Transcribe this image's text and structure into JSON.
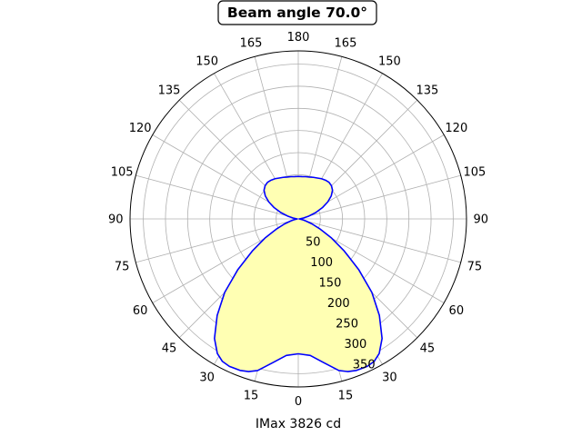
{
  "chart_data": {
    "type": "polar",
    "title": "Beam angle 70.0°",
    "xlabel": "IMax 3826 cd",
    "angle_tick_labels": [
      "0",
      "15",
      "30",
      "45",
      "60",
      "75",
      "90",
      "105",
      "120",
      "135",
      "150",
      "165",
      "180",
      "165",
      "150",
      "135",
      "120",
      "105",
      "90",
      "75",
      "60",
      "45",
      "30",
      "15"
    ],
    "radial_tick_labels": [
      "50",
      "100",
      "150",
      "200",
      "250",
      "300",
      "350"
    ],
    "rlim": [
      0,
      380
    ],
    "grid": true,
    "line_color": "#0000ff",
    "fill_color": "#ffffb3",
    "series": [
      {
        "curve": [
          {
            "angle": 0,
            "r": 305
          },
          {
            "angle": 5,
            "r": 310
          },
          {
            "angle": 10,
            "r": 330
          },
          {
            "angle": 15,
            "r": 355
          },
          {
            "angle": 18,
            "r": 363
          },
          {
            "angle": 21,
            "r": 367
          },
          {
            "angle": 25,
            "r": 368
          },
          {
            "angle": 28,
            "r": 365
          },
          {
            "angle": 31,
            "r": 355
          },
          {
            "angle": 35,
            "r": 330
          },
          {
            "angle": 40,
            "r": 285
          },
          {
            "angle": 45,
            "r": 235
          },
          {
            "angle": 50,
            "r": 178
          },
          {
            "angle": 55,
            "r": 127
          },
          {
            "angle": 60,
            "r": 87
          },
          {
            "angle": 65,
            "r": 55
          },
          {
            "angle": 70,
            "r": 33
          },
          {
            "angle": 75,
            "r": 17
          },
          {
            "angle": 80,
            "r": 8
          },
          {
            "angle": 85,
            "r": 3
          },
          {
            "angle": 90,
            "r": 2
          },
          {
            "angle": 95,
            "r": 5
          },
          {
            "angle": 100,
            "r": 12
          },
          {
            "angle": 105,
            "r": 25
          },
          {
            "angle": 110,
            "r": 42
          },
          {
            "angle": 115,
            "r": 60
          },
          {
            "angle": 120,
            "r": 77
          },
          {
            "angle": 125,
            "r": 91
          },
          {
            "angle": 130,
            "r": 101
          },
          {
            "angle": 135,
            "r": 106
          },
          {
            "angle": 140,
            "r": 108
          },
          {
            "angle": 145,
            "r": 107
          },
          {
            "angle": 150,
            "r": 105
          },
          {
            "angle": 155,
            "r": 102
          },
          {
            "angle": 160,
            "r": 100
          },
          {
            "angle": 165,
            "r": 98
          },
          {
            "angle": 170,
            "r": 97
          },
          {
            "angle": 175,
            "r": 96
          },
          {
            "angle": 180,
            "r": 96
          }
        ]
      }
    ]
  }
}
